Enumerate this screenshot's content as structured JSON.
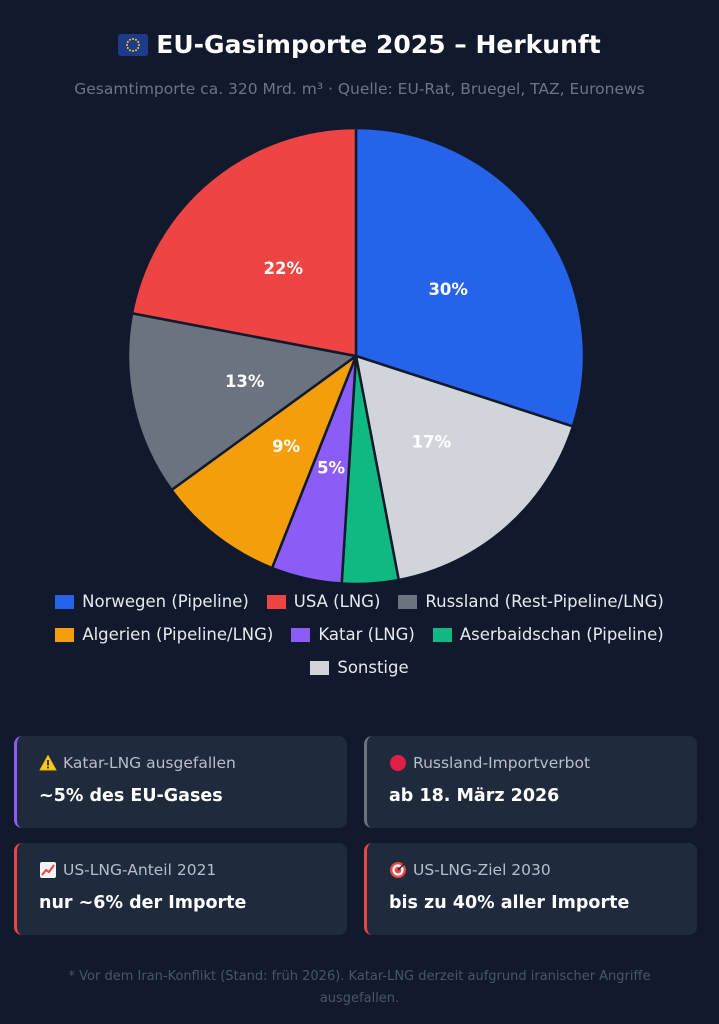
{
  "header": {
    "title": "EU-Gasimporte 2025 – Herkunft",
    "subtitle": "Gesamtimporte ca. 320 Mrd. m³ · Quelle: EU-Rat, Bruegel, TAZ, Euronews"
  },
  "chart_data": {
    "type": "pie",
    "title": "EU-Gasimporte 2025 – Herkunft",
    "subtitle": "Gesamtimporte ca. 320 Mrd. m³ · Quelle: EU-Rat, Bruegel, TAZ, Euronews",
    "start_angle_deg": -90,
    "direction": "clockwise",
    "legend_position": "bottom",
    "slices": [
      {
        "name": "Norwegen (Pipeline)",
        "value": 30,
        "label": "30%",
        "color": "#2563eb"
      },
      {
        "name": "Sonstige",
        "value": 17,
        "label": "17%",
        "color": "#d1d5db"
      },
      {
        "name": "Aserbaidschan (Pipeline)",
        "value": 4,
        "label": "",
        "color": "#10b981"
      },
      {
        "name": "Katar (LNG)",
        "value": 5,
        "label": "5%",
        "color": "#8b5cf6"
      },
      {
        "name": "Algerien (Pipeline/LNG)",
        "value": 9,
        "label": "9%",
        "color": "#f59e0b"
      },
      {
        "name": "Russland (Rest-Pipeline/LNG)",
        "value": 13,
        "label": "13%",
        "color": "#6b7280"
      },
      {
        "name": "USA (LNG)",
        "value": 22,
        "label": "22%",
        "color": "#ef4444"
      }
    ],
    "legend": [
      {
        "name": "Norwegen (Pipeline)",
        "color": "#2563eb"
      },
      {
        "name": "USA (LNG)",
        "color": "#ef4444"
      },
      {
        "name": "Russland (Rest-Pipeline/LNG)",
        "color": "#6b7280"
      },
      {
        "name": "Algerien (Pipeline/LNG)",
        "color": "#f59e0b"
      },
      {
        "name": "Katar (LNG)",
        "color": "#8b5cf6"
      },
      {
        "name": "Aserbaidschan (Pipeline)",
        "color": "#10b981"
      },
      {
        "name": "Sonstige",
        "color": "#d1d5db"
      }
    ]
  },
  "cards": [
    {
      "icon": "warning-icon",
      "label": "Katar-LNG ausgefallen",
      "value": "~5% des EU-Gases",
      "accent": "#8b5cf6"
    },
    {
      "icon": "red-circle-icon",
      "label": "Russland-Importverbot",
      "value": "ab 18. März 2026",
      "accent": "#6b7280"
    },
    {
      "icon": "chart-increasing-icon",
      "label": "US-LNG-Anteil 2021",
      "value": "nur ~6% der Importe",
      "accent": "#ef4444"
    },
    {
      "icon": "target-icon",
      "label": "US-LNG-Ziel 2030",
      "value": "bis zu 40% aller Importe",
      "accent": "#ef4444"
    }
  ],
  "footnote": "* Vor dem Iran-Konflikt (Stand: früh 2026). Katar-LNG derzeit aufgrund iranischer Angriffe ausgefallen."
}
